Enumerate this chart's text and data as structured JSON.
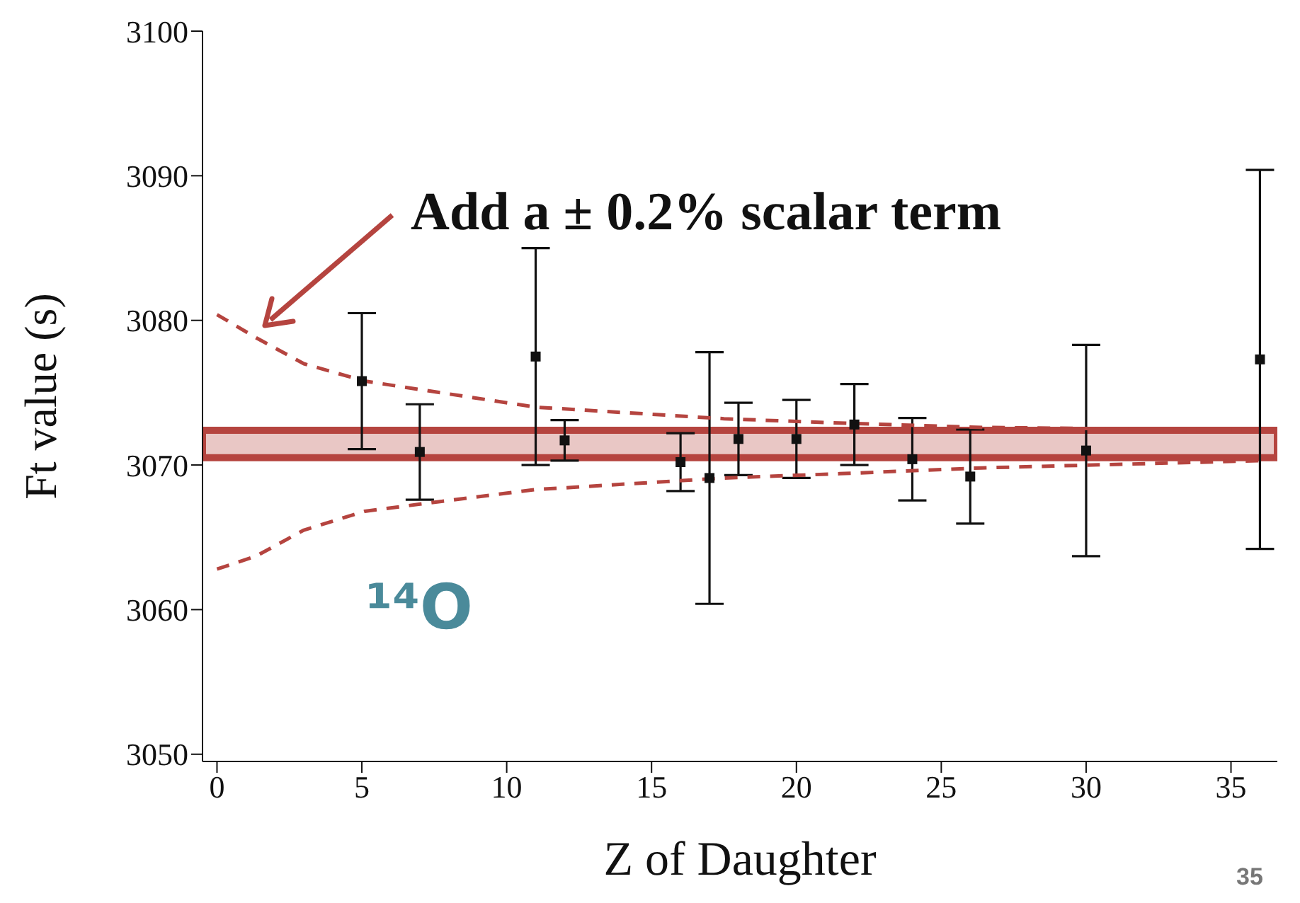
{
  "chart_data": {
    "type": "scatter",
    "xlabel": "Z of Daughter",
    "ylabel": "Ft value (s)",
    "xlim": [
      -0.5,
      36.6
    ],
    "xticks": [
      0,
      5,
      10,
      15,
      20,
      25,
      30,
      35
    ],
    "ylim": [
      3049.5,
      3100
    ],
    "yticks": [
      3050,
      3060,
      3070,
      3080,
      3090,
      3100
    ],
    "grid": false,
    "legend": false,
    "marker": "square",
    "series": [
      {
        "type": "scatter",
        "color": "#111111",
        "x": [
          5,
          7,
          11,
          12,
          16,
          17,
          18,
          20,
          22,
          24,
          26,
          30,
          36
        ],
        "values": [
          3075.8,
          3070.9,
          3077.5,
          3071.7,
          3070.2,
          3069.1,
          3071.8,
          3071.8,
          3072.8,
          3070.4,
          3069.2,
          3071.0,
          3077.3
        ],
        "errors": [
          4.7,
          3.3,
          7.5,
          1.4,
          2.0,
          8.7,
          2.5,
          2.7,
          2.8,
          2.85,
          3.25,
          7.3,
          13.1
        ]
      },
      {
        "type": "line",
        "color": "#b5443f",
        "line_style": "dashed",
        "marker": "none",
        "x": [
          0,
          1.35,
          3,
          5.1,
          11,
          17.5,
          21.5,
          26.4,
          36
        ],
        "values": [
          3080.4,
          3078.8,
          3077.0,
          3075.8,
          3074.0,
          3073.2,
          3072.9,
          3072.6,
          3072.4
        ]
      },
      {
        "type": "line",
        "color": "#b5443f",
        "line_style": "dashed",
        "marker": "none",
        "x": [
          0,
          1.35,
          3,
          5.1,
          7.8,
          11,
          17.5,
          21.5,
          26.4,
          36
        ],
        "values": [
          3062.8,
          3063.7,
          3065.5,
          3066.8,
          3067.5,
          3068.3,
          3069.1,
          3069.4,
          3069.8,
          3070.3
        ]
      }
    ],
    "bands": [
      {
        "axis": "y",
        "from": 3070.5,
        "to": 3072.4,
        "color": "#b5443f"
      }
    ],
    "annotations": [
      "Add a ± 0.2% scalar term",
      "¹⁴O",
      "35"
    ]
  }
}
